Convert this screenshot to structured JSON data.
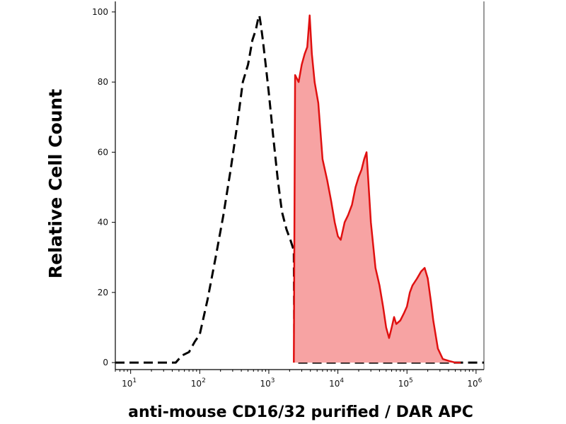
{
  "chart_data": {
    "type": "area",
    "title": "",
    "xlabel": "anti-mouse CD16/32 purified / DAR APC",
    "ylabel": "Relative Cell Count",
    "xscale": "log",
    "xlim": [
      6,
      1300000
    ],
    "ylim": [
      -2,
      103
    ],
    "grid": false,
    "legend": "none",
    "yticks": [
      0,
      20,
      40,
      60,
      80,
      100
    ],
    "ytick_labels": [
      "0",
      "20",
      "40",
      "60",
      "80",
      "100"
    ],
    "xticks": [
      10,
      100,
      1000,
      10000,
      100000,
      1000000
    ],
    "xtick_labels": [
      {
        "base": "10",
        "exp": "1"
      },
      {
        "base": "10",
        "exp": "2"
      },
      {
        "base": "10",
        "exp": "3"
      },
      {
        "base": "10",
        "exp": "4"
      },
      {
        "base": "10",
        "exp": "5"
      },
      {
        "base": "10",
        "exp": "6"
      }
    ],
    "series": [
      {
        "style": "dashed",
        "color": "#000000",
        "fill": "none",
        "x": [
          6,
          45,
          55,
          70,
          85,
          100,
          130,
          170,
          220,
          280,
          350,
          420,
          500,
          580,
          650,
          700,
          730,
          770,
          820,
          900,
          1000,
          1150,
          1350,
          1550,
          1800,
          2050,
          2300,
          2350,
          3000,
          10000,
          100000,
          1300000
        ],
        "y": [
          0,
          0,
          2,
          3,
          6,
          8,
          18,
          30,
          42,
          55,
          68,
          80,
          85,
          92,
          95,
          98,
          99,
          96,
          92,
          85,
          77,
          65,
          52,
          43,
          38,
          35,
          32,
          0,
          0,
          0,
          0,
          0
        ]
      },
      {
        "style": "solid",
        "color": "#e01010",
        "fill": "#f7a3a3",
        "x": [
          2300,
          2400,
          2700,
          3000,
          3300,
          3600,
          3900,
          4200,
          4600,
          5200,
          6000,
          7000,
          8000,
          9000,
          10000,
          11000,
          12500,
          14000,
          16000,
          18000,
          20000,
          22000,
          24000,
          26000,
          30000,
          35000,
          40000,
          45000,
          50000,
          55000,
          60000,
          65000,
          70000,
          80000,
          90000,
          100000,
          110000,
          120000,
          140000,
          160000,
          180000,
          200000,
          220000,
          240000,
          280000,
          330000,
          400000,
          500000,
          600000
        ],
        "y": [
          0,
          82,
          80,
          85,
          88,
          90,
          99,
          88,
          80,
          74,
          58,
          52,
          46,
          40,
          36,
          35,
          40,
          42,
          45,
          50,
          53,
          55,
          58,
          60,
          40,
          27,
          22,
          16,
          10,
          7,
          10,
          13,
          11,
          12,
          14,
          16,
          20,
          22,
          24,
          26,
          27,
          24,
          18,
          12,
          4,
          1,
          0.5,
          0,
          0
        ]
      }
    ]
  }
}
